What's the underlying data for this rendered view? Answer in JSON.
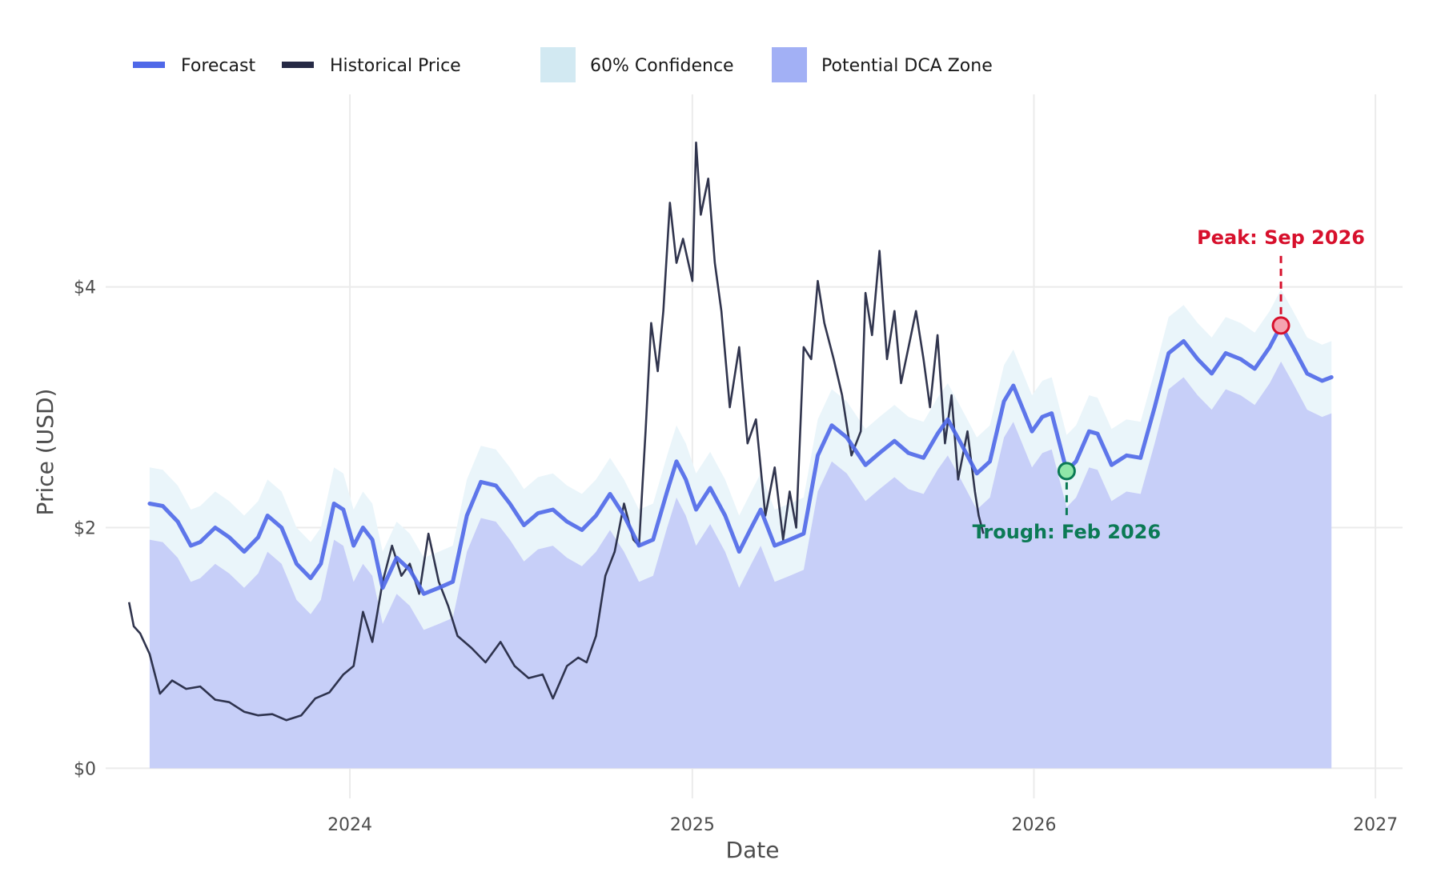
{
  "chart_data": {
    "type": "line",
    "title": "",
    "xlabel": "Date",
    "ylabel": "Price (USD)",
    "x_ticks": [
      "2024",
      "2025",
      "2026",
      "2027"
    ],
    "y_ticks": [
      "$0",
      "$2",
      "$4"
    ],
    "xlim": [
      "2023-04-15",
      "2027-01-30"
    ],
    "ylim": [
      -0.25,
      5.6
    ],
    "grid": true,
    "legend_position": "top",
    "legend": [
      {
        "label": "Forecast",
        "kind": "line",
        "color": "#4f68e8"
      },
      {
        "label": "Historical Price",
        "kind": "line",
        "color": "#262a45"
      },
      {
        "label": "60% Confidence",
        "kind": "fill",
        "color": "#d2e9f2"
      },
      {
        "label": "Potential DCA Zone",
        "kind": "fill",
        "color": "#a2b0f5"
      }
    ],
    "colors": {
      "forecast": "#4f68e8",
      "historical": "#262a45",
      "confidence": "#eaf5fa",
      "dca_zone": "#c7cff8",
      "peak": "#d7102c",
      "trough": "#0b7a55",
      "grid": "#ebebeb"
    },
    "series": [
      {
        "name": "Historical Price",
        "points": [
          [
            "2023-05-10",
            1.38
          ],
          [
            "2023-05-15",
            1.18
          ],
          [
            "2023-05-22",
            1.12
          ],
          [
            "2023-06-01",
            0.95
          ],
          [
            "2023-06-12",
            0.62
          ],
          [
            "2023-06-25",
            0.73
          ],
          [
            "2023-07-10",
            0.66
          ],
          [
            "2023-07-25",
            0.68
          ],
          [
            "2023-08-10",
            0.57
          ],
          [
            "2023-08-25",
            0.55
          ],
          [
            "2023-09-10",
            0.47
          ],
          [
            "2023-09-25",
            0.44
          ],
          [
            "2023-10-10",
            0.45
          ],
          [
            "2023-10-25",
            0.4
          ],
          [
            "2023-11-10",
            0.44
          ],
          [
            "2023-11-25",
            0.58
          ],
          [
            "2023-12-10",
            0.63
          ],
          [
            "2023-12-25",
            0.78
          ],
          [
            "2024-01-05",
            0.85
          ],
          [
            "2024-01-15",
            1.3
          ],
          [
            "2024-01-25",
            1.05
          ],
          [
            "2024-02-05",
            1.55
          ],
          [
            "2024-02-15",
            1.85
          ],
          [
            "2024-02-25",
            1.6
          ],
          [
            "2024-03-05",
            1.7
          ],
          [
            "2024-03-15",
            1.45
          ],
          [
            "2024-03-25",
            1.95
          ],
          [
            "2024-04-05",
            1.55
          ],
          [
            "2024-04-15",
            1.35
          ],
          [
            "2024-04-25",
            1.1
          ],
          [
            "2024-05-10",
            1.0
          ],
          [
            "2024-05-25",
            0.88
          ],
          [
            "2024-06-10",
            1.05
          ],
          [
            "2024-06-25",
            0.85
          ],
          [
            "2024-07-10",
            0.75
          ],
          [
            "2024-07-25",
            0.78
          ],
          [
            "2024-08-05",
            0.58
          ],
          [
            "2024-08-20",
            0.85
          ],
          [
            "2024-09-01",
            0.92
          ],
          [
            "2024-09-10",
            0.88
          ],
          [
            "2024-09-20",
            1.1
          ],
          [
            "2024-09-30",
            1.6
          ],
          [
            "2024-10-10",
            1.8
          ],
          [
            "2024-10-20",
            2.2
          ],
          [
            "2024-10-30",
            1.9
          ],
          [
            "2024-11-05",
            1.85
          ],
          [
            "2024-11-12",
            2.8
          ],
          [
            "2024-11-18",
            3.7
          ],
          [
            "2024-11-25",
            3.3
          ],
          [
            "2024-12-01",
            3.8
          ],
          [
            "2024-12-08",
            4.7
          ],
          [
            "2024-12-15",
            4.2
          ],
          [
            "2024-12-22",
            4.4
          ],
          [
            "2025-01-01",
            4.05
          ],
          [
            "2025-01-05",
            5.2
          ],
          [
            "2025-01-10",
            4.6
          ],
          [
            "2025-01-18",
            4.9
          ],
          [
            "2025-01-25",
            4.2
          ],
          [
            "2025-02-01",
            3.8
          ],
          [
            "2025-02-10",
            3.0
          ],
          [
            "2025-02-20",
            3.5
          ],
          [
            "2025-03-01",
            2.7
          ],
          [
            "2025-03-10",
            2.9
          ],
          [
            "2025-03-20",
            2.1
          ],
          [
            "2025-03-30",
            2.5
          ],
          [
            "2025-04-08",
            1.9
          ],
          [
            "2025-04-15",
            2.3
          ],
          [
            "2025-04-22",
            2.0
          ],
          [
            "2025-04-30",
            3.5
          ],
          [
            "2025-05-08",
            3.4
          ],
          [
            "2025-05-15",
            4.05
          ],
          [
            "2025-05-22",
            3.7
          ],
          [
            "2025-06-01",
            3.4
          ],
          [
            "2025-06-10",
            3.1
          ],
          [
            "2025-06-20",
            2.6
          ],
          [
            "2025-06-30",
            2.8
          ],
          [
            "2025-07-05",
            3.95
          ],
          [
            "2025-07-12",
            3.6
          ],
          [
            "2025-07-20",
            4.3
          ],
          [
            "2025-07-28",
            3.4
          ],
          [
            "2025-08-05",
            3.8
          ],
          [
            "2025-08-12",
            3.2
          ],
          [
            "2025-08-20",
            3.5
          ],
          [
            "2025-08-28",
            3.8
          ],
          [
            "2025-09-05",
            3.4
          ],
          [
            "2025-09-12",
            3.0
          ],
          [
            "2025-09-20",
            3.6
          ],
          [
            "2025-09-28",
            2.7
          ],
          [
            "2025-10-05",
            3.1
          ],
          [
            "2025-10-12",
            2.4
          ],
          [
            "2025-10-22",
            2.8
          ],
          [
            "2025-10-30",
            2.3
          ],
          [
            "2025-11-03",
            2.1
          ],
          [
            "2025-11-08",
            1.95
          ]
        ]
      },
      {
        "name": "Forecast",
        "points": [
          [
            "2023-06-01",
            2.2
          ],
          [
            "2023-06-15",
            2.18
          ],
          [
            "2023-07-01",
            2.05
          ],
          [
            "2023-07-15",
            1.85
          ],
          [
            "2023-07-25",
            1.88
          ],
          [
            "2023-08-10",
            2.0
          ],
          [
            "2023-08-25",
            1.92
          ],
          [
            "2023-09-10",
            1.8
          ],
          [
            "2023-09-25",
            1.92
          ],
          [
            "2023-10-05",
            2.1
          ],
          [
            "2023-10-20",
            2.0
          ],
          [
            "2023-11-05",
            1.7
          ],
          [
            "2023-11-20",
            1.58
          ],
          [
            "2023-12-01",
            1.7
          ],
          [
            "2023-12-15",
            2.2
          ],
          [
            "2023-12-25",
            2.15
          ],
          [
            "2024-01-05",
            1.85
          ],
          [
            "2024-01-15",
            2.0
          ],
          [
            "2024-01-25",
            1.9
          ],
          [
            "2024-02-05",
            1.5
          ],
          [
            "2024-02-20",
            1.75
          ],
          [
            "2024-03-05",
            1.65
          ],
          [
            "2024-03-20",
            1.45
          ],
          [
            "2024-04-05",
            1.5
          ],
          [
            "2024-04-20",
            1.55
          ],
          [
            "2024-05-05",
            2.1
          ],
          [
            "2024-05-20",
            2.38
          ],
          [
            "2024-06-05",
            2.35
          ],
          [
            "2024-06-20",
            2.2
          ],
          [
            "2024-07-05",
            2.02
          ],
          [
            "2024-07-20",
            2.12
          ],
          [
            "2024-08-05",
            2.15
          ],
          [
            "2024-08-20",
            2.05
          ],
          [
            "2024-09-05",
            1.98
          ],
          [
            "2024-09-20",
            2.1
          ],
          [
            "2024-10-05",
            2.28
          ],
          [
            "2024-10-20",
            2.1
          ],
          [
            "2024-11-05",
            1.85
          ],
          [
            "2024-11-20",
            1.9
          ],
          [
            "2024-12-05",
            2.3
          ],
          [
            "2024-12-15",
            2.55
          ],
          [
            "2024-12-25",
            2.4
          ],
          [
            "2025-01-05",
            2.15
          ],
          [
            "2025-01-20",
            2.33
          ],
          [
            "2025-02-05",
            2.1
          ],
          [
            "2025-02-20",
            1.8
          ],
          [
            "2025-03-05",
            2.0
          ],
          [
            "2025-03-15",
            2.15
          ],
          [
            "2025-03-30",
            1.85
          ],
          [
            "2025-04-15",
            1.9
          ],
          [
            "2025-04-30",
            1.95
          ],
          [
            "2025-05-15",
            2.6
          ],
          [
            "2025-05-30",
            2.85
          ],
          [
            "2025-06-15",
            2.75
          ],
          [
            "2025-07-05",
            2.52
          ],
          [
            "2025-07-20",
            2.62
          ],
          [
            "2025-08-05",
            2.72
          ],
          [
            "2025-08-20",
            2.62
          ],
          [
            "2025-09-05",
            2.58
          ],
          [
            "2025-09-20",
            2.78
          ],
          [
            "2025-10-01",
            2.9
          ],
          [
            "2025-10-15",
            2.7
          ],
          [
            "2025-11-01",
            2.45
          ],
          [
            "2025-11-15",
            2.55
          ],
          [
            "2025-11-30",
            3.05
          ],
          [
            "2025-12-10",
            3.18
          ],
          [
            "2025-12-30",
            2.8
          ],
          [
            "2026-01-10",
            2.92
          ],
          [
            "2026-01-20",
            2.95
          ],
          [
            "2026-02-05",
            2.47
          ],
          [
            "2026-02-15",
            2.55
          ],
          [
            "2026-03-01",
            2.8
          ],
          [
            "2026-03-10",
            2.78
          ],
          [
            "2026-03-25",
            2.52
          ],
          [
            "2026-04-10",
            2.6
          ],
          [
            "2026-04-25",
            2.58
          ],
          [
            "2026-05-10",
            3.0
          ],
          [
            "2026-05-25",
            3.45
          ],
          [
            "2026-06-10",
            3.55
          ],
          [
            "2026-06-25",
            3.4
          ],
          [
            "2026-07-10",
            3.28
          ],
          [
            "2026-07-25",
            3.45
          ],
          [
            "2026-08-10",
            3.4
          ],
          [
            "2026-08-25",
            3.32
          ],
          [
            "2026-09-10",
            3.5
          ],
          [
            "2026-09-22",
            3.68
          ],
          [
            "2026-10-05",
            3.5
          ],
          [
            "2026-10-20",
            3.28
          ],
          [
            "2026-11-05",
            3.22
          ],
          [
            "2026-11-15",
            3.25
          ]
        ]
      }
    ],
    "confidence_band": {
      "name": "60% Confidence",
      "offset_above": 0.3,
      "offset_below": 0.3
    },
    "dca_zone": {
      "name": "Potential DCA Zone",
      "upper_offset_below_forecast": 0.3,
      "lower": 0
    },
    "annotations": [
      {
        "label": "Peak: Sep 2026",
        "x": "2026-09-22",
        "y": 3.68,
        "kind": "peak"
      },
      {
        "label": "Trough: Feb 2026",
        "x": "2026-02-05",
        "y": 2.47,
        "kind": "trough"
      }
    ]
  }
}
